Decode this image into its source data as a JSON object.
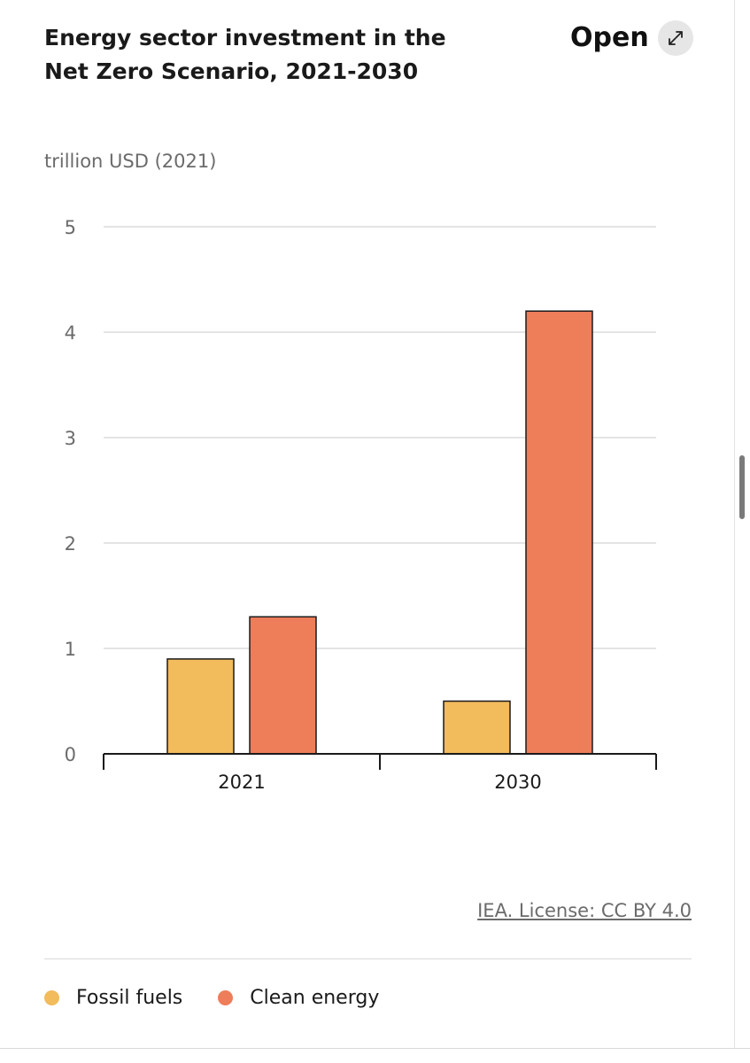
{
  "header": {
    "title": "Energy sector investment in the Net Zero Scenario, 2021-2030",
    "open_label": "Open",
    "open_icon": "expand-arrow-icon"
  },
  "footer": {
    "license": "IEA. License: CC BY 4.0"
  },
  "colors": {
    "fossil": "#f2bb5c",
    "clean": "#ee7d5a"
  },
  "chart_data": {
    "type": "bar",
    "title": "Energy sector investment in the Net Zero Scenario, 2021-2030",
    "ylabel": "trillion USD (2021)",
    "xlabel": "",
    "categories": [
      "2021",
      "2030"
    ],
    "series": [
      {
        "name": "Fossil fuels",
        "values": [
          0.9,
          0.5
        ]
      },
      {
        "name": "Clean energy",
        "values": [
          1.3,
          4.2
        ]
      }
    ],
    "ylim": [
      0,
      5
    ],
    "yticks": [
      0,
      1,
      2,
      3,
      4,
      5
    ],
    "grid": true,
    "legend_position": "bottom"
  }
}
